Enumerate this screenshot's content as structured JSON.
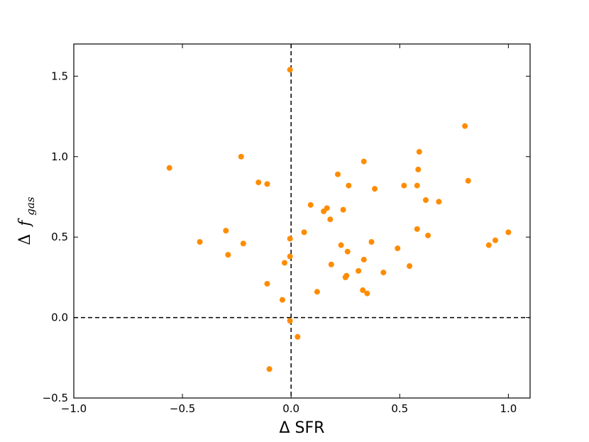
{
  "chart_data": {
    "type": "scatter",
    "title": "",
    "xlabel": "Δ SFR",
    "ylabel_prefix": "Δ",
    "ylabel_symbol": "f",
    "ylabel_subscript": "gas",
    "xlim": [
      -1.0,
      1.1
    ],
    "ylim": [
      -0.5,
      1.7
    ],
    "xticks": [
      -1.0,
      -0.5,
      0.0,
      0.5,
      1.0
    ],
    "xtick_labels": [
      "−1.0",
      "−0.5",
      "0.0",
      "0.5",
      "1.0"
    ],
    "yticks": [
      -0.5,
      0.0,
      0.5,
      1.0,
      1.5
    ],
    "ytick_labels": [
      "−0.5",
      "0.0",
      "0.5",
      "1.0",
      "1.5"
    ],
    "grid": false,
    "reference_lines": {
      "x": 0.0,
      "y": 0.0,
      "style": "dashed"
    },
    "marker_color": "#ff8c00",
    "points": [
      {
        "x": -0.56,
        "y": 0.93
      },
      {
        "x": -0.42,
        "y": 0.47
      },
      {
        "x": -0.3,
        "y": 0.54
      },
      {
        "x": -0.29,
        "y": 0.39
      },
      {
        "x": -0.23,
        "y": 1.0
      },
      {
        "x": -0.22,
        "y": 0.46
      },
      {
        "x": -0.15,
        "y": 0.84
      },
      {
        "x": -0.11,
        "y": 0.83
      },
      {
        "x": -0.11,
        "y": 0.21
      },
      {
        "x": -0.1,
        "y": -0.32
      },
      {
        "x": -0.04,
        "y": 0.11
      },
      {
        "x": -0.03,
        "y": 0.34
      },
      {
        "x": -0.005,
        "y": 1.54
      },
      {
        "x": -0.005,
        "y": 0.49
      },
      {
        "x": -0.005,
        "y": 0.38
      },
      {
        "x": -0.005,
        "y": -0.02
      },
      {
        "x": 0.03,
        "y": -0.12
      },
      {
        "x": 0.06,
        "y": 0.53
      },
      {
        "x": 0.09,
        "y": 0.7
      },
      {
        "x": 0.12,
        "y": 0.16
      },
      {
        "x": 0.15,
        "y": 0.66
      },
      {
        "x": 0.165,
        "y": 0.68
      },
      {
        "x": 0.18,
        "y": 0.61
      },
      {
        "x": 0.185,
        "y": 0.33
      },
      {
        "x": 0.215,
        "y": 0.89
      },
      {
        "x": 0.23,
        "y": 0.45
      },
      {
        "x": 0.24,
        "y": 0.67
      },
      {
        "x": 0.25,
        "y": 0.25
      },
      {
        "x": 0.255,
        "y": 0.26
      },
      {
        "x": 0.26,
        "y": 0.41
      },
      {
        "x": 0.265,
        "y": 0.82
      },
      {
        "x": 0.31,
        "y": 0.29
      },
      {
        "x": 0.33,
        "y": 0.17
      },
      {
        "x": 0.335,
        "y": 0.97
      },
      {
        "x": 0.335,
        "y": 0.36
      },
      {
        "x": 0.35,
        "y": 0.15
      },
      {
        "x": 0.37,
        "y": 0.47
      },
      {
        "x": 0.385,
        "y": 0.8
      },
      {
        "x": 0.425,
        "y": 0.28
      },
      {
        "x": 0.49,
        "y": 0.43
      },
      {
        "x": 0.52,
        "y": 0.82
      },
      {
        "x": 0.545,
        "y": 0.32
      },
      {
        "x": 0.58,
        "y": 0.82
      },
      {
        "x": 0.58,
        "y": 0.55
      },
      {
        "x": 0.585,
        "y": 0.92
      },
      {
        "x": 0.59,
        "y": 1.03
      },
      {
        "x": 0.62,
        "y": 0.73
      },
      {
        "x": 0.63,
        "y": 0.51
      },
      {
        "x": 0.68,
        "y": 0.72
      },
      {
        "x": 0.8,
        "y": 1.19
      },
      {
        "x": 0.815,
        "y": 0.85
      },
      {
        "x": 0.91,
        "y": 0.45
      },
      {
        "x": 0.94,
        "y": 0.48
      },
      {
        "x": 1.0,
        "y": 0.53
      }
    ]
  }
}
